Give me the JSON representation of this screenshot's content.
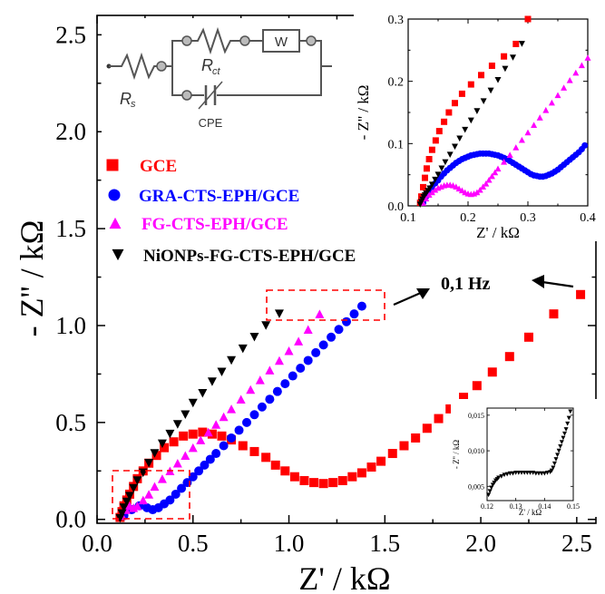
{
  "chart_data": [
    {
      "type": "scatter",
      "xlabel": "Z' / kΩ",
      "ylabel": "- Z'' / kΩ",
      "xlim": [
        0.0,
        2.6
      ],
      "ylim": [
        -0.02,
        2.6
      ],
      "xticks": [
        0.0,
        0.5,
        1.0,
        1.5,
        2.0,
        2.5
      ],
      "xtick_labels": [
        "0.0",
        "0.5",
        "1.0",
        "1.5",
        "2.0",
        "2.5"
      ],
      "yticks": [
        0.0,
        0.5,
        1.0,
        1.5,
        2.0,
        2.5
      ],
      "ytick_labels": [
        "0.0",
        "0.5",
        "1.0",
        "1.5",
        "2.0",
        "2.5"
      ],
      "annotation": "0,1 Hz",
      "legend_position": "left, upper-middle",
      "series": [
        {
          "name": "GCE",
          "color": "#ff0000",
          "marker": "square",
          "x": [
            0.12,
            0.13,
            0.14,
            0.155,
            0.17,
            0.19,
            0.21,
            0.24,
            0.27,
            0.31,
            0.35,
            0.4,
            0.45,
            0.5,
            0.55,
            0.6,
            0.65,
            0.7,
            0.76,
            0.82,
            0.88,
            0.93,
            0.98,
            1.03,
            1.08,
            1.13,
            1.18,
            1.23,
            1.28,
            1.33,
            1.38,
            1.43,
            1.48,
            1.54,
            1.6,
            1.66,
            1.72,
            1.78,
            1.84,
            1.91,
            1.98,
            2.06,
            2.15,
            2.25,
            2.38,
            2.52
          ],
          "y": [
            0.01,
            0.04,
            0.07,
            0.1,
            0.13,
            0.17,
            0.21,
            0.25,
            0.29,
            0.33,
            0.37,
            0.4,
            0.43,
            0.44,
            0.45,
            0.44,
            0.43,
            0.41,
            0.38,
            0.35,
            0.32,
            0.28,
            0.25,
            0.22,
            0.2,
            0.19,
            0.185,
            0.19,
            0.2,
            0.22,
            0.24,
            0.27,
            0.3,
            0.34,
            0.38,
            0.42,
            0.47,
            0.52,
            0.57,
            0.63,
            0.69,
            0.76,
            0.84,
            0.94,
            1.06,
            1.16
          ]
        },
        {
          "name": "GRA-CTS-EPH/GCE",
          "color": "#0000ff",
          "marker": "circle",
          "x": [
            0.14,
            0.18,
            0.22,
            0.26,
            0.29,
            0.32,
            0.35,
            0.38,
            0.41,
            0.44,
            0.47,
            0.5,
            0.53,
            0.56,
            0.59,
            0.62,
            0.66,
            0.7,
            0.74,
            0.78,
            0.82,
            0.86,
            0.9,
            0.94,
            0.98,
            1.02,
            1.06,
            1.1,
            1.14,
            1.18,
            1.22,
            1.26,
            1.3,
            1.34,
            1.38
          ],
          "y": [
            0.02,
            0.05,
            0.07,
            0.06,
            0.05,
            0.06,
            0.08,
            0.1,
            0.13,
            0.16,
            0.19,
            0.22,
            0.25,
            0.28,
            0.31,
            0.34,
            0.38,
            0.42,
            0.46,
            0.5,
            0.54,
            0.58,
            0.62,
            0.66,
            0.7,
            0.74,
            0.78,
            0.82,
            0.86,
            0.9,
            0.94,
            0.98,
            1.02,
            1.06,
            1.1
          ]
        },
        {
          "name": "FG-CTS-EPH/GCE",
          "color": "#ff00ff",
          "marker": "triangle-up",
          "x": [
            0.13,
            0.15,
            0.17,
            0.19,
            0.21,
            0.24,
            0.27,
            0.3,
            0.34,
            0.38,
            0.42,
            0.46,
            0.5,
            0.54,
            0.58,
            0.62,
            0.66,
            0.7,
            0.75,
            0.8,
            0.85,
            0.9,
            0.95,
            1.0,
            1.05,
            1.1,
            1.16
          ],
          "y": [
            0.02,
            0.05,
            0.07,
            0.06,
            0.07,
            0.1,
            0.13,
            0.17,
            0.21,
            0.25,
            0.29,
            0.33,
            0.37,
            0.41,
            0.45,
            0.49,
            0.53,
            0.57,
            0.62,
            0.67,
            0.72,
            0.77,
            0.82,
            0.87,
            0.92,
            0.98,
            1.06
          ]
        },
        {
          "name": "NiONPs-FG-CTS-EPH/GCE",
          "color": "#000000",
          "marker": "triangle-down",
          "x": [
            0.12,
            0.13,
            0.14,
            0.155,
            0.17,
            0.19,
            0.21,
            0.24,
            0.27,
            0.3,
            0.34,
            0.38,
            0.42,
            0.46,
            0.5,
            0.55,
            0.6,
            0.65,
            0.7,
            0.76,
            0.82,
            0.88,
            0.95
          ],
          "y": [
            0.005,
            0.03,
            0.06,
            0.09,
            0.12,
            0.16,
            0.2,
            0.24,
            0.29,
            0.34,
            0.39,
            0.44,
            0.49,
            0.54,
            0.6,
            0.65,
            0.71,
            0.76,
            0.82,
            0.88,
            0.94,
            1.0,
            1.06
          ]
        }
      ]
    },
    {
      "type": "scatter",
      "xlabel": "Z' / kΩ",
      "ylabel": "- Z'' / kΩ",
      "xlim": [
        0.1,
        0.4
      ],
      "ylim": [
        0.0,
        0.3
      ],
      "xticks": [
        0.1,
        0.2,
        0.3,
        0.4
      ],
      "xtick_labels": [
        "0.1",
        "0.2",
        "0.3",
        "0.4"
      ],
      "yticks": [
        0.0,
        0.1,
        0.2,
        0.3
      ],
      "ytick_labels": [
        "0.0",
        "0.1",
        "0.2",
        "0.3"
      ],
      "series": [
        {
          "name": "GCE",
          "color": "#ff0000",
          "marker": "square",
          "x": [
            0.12,
            0.122,
            0.125,
            0.128,
            0.131,
            0.135,
            0.14,
            0.146,
            0.152,
            0.16,
            0.168,
            0.178,
            0.19,
            0.205,
            0.222,
            0.24,
            0.26,
            0.28,
            0.3
          ],
          "y": [
            0.005,
            0.015,
            0.03,
            0.045,
            0.06,
            0.075,
            0.09,
            0.105,
            0.12,
            0.135,
            0.15,
            0.165,
            0.18,
            0.195,
            0.21,
            0.225,
            0.24,
            0.26,
            0.3
          ]
        },
        {
          "name": "GRA-CTS-EPH/GCE",
          "color": "#0000ff",
          "marker": "circle",
          "x": [
            0.125,
            0.13,
            0.135,
            0.14,
            0.145,
            0.15,
            0.155,
            0.16,
            0.165,
            0.17,
            0.175,
            0.18,
            0.185,
            0.19,
            0.195,
            0.2,
            0.205,
            0.21,
            0.215,
            0.22,
            0.225,
            0.23,
            0.235,
            0.24,
            0.245,
            0.25,
            0.255,
            0.26,
            0.265,
            0.27,
            0.275,
            0.28,
            0.285,
            0.29,
            0.295,
            0.3,
            0.305,
            0.31,
            0.315,
            0.32,
            0.325,
            0.33,
            0.335,
            0.34,
            0.345,
            0.35,
            0.355,
            0.36,
            0.365,
            0.37,
            0.375,
            0.38,
            0.385,
            0.39,
            0.395
          ],
          "y": [
            0.005,
            0.015,
            0.023,
            0.03,
            0.036,
            0.041,
            0.047,
            0.052,
            0.057,
            0.061,
            0.065,
            0.069,
            0.072,
            0.075,
            0.077,
            0.079,
            0.081,
            0.082,
            0.083,
            0.084,
            0.084,
            0.084,
            0.084,
            0.083,
            0.082,
            0.081,
            0.079,
            0.077,
            0.075,
            0.072,
            0.069,
            0.066,
            0.063,
            0.06,
            0.057,
            0.054,
            0.051,
            0.049,
            0.048,
            0.047,
            0.047,
            0.048,
            0.05,
            0.052,
            0.055,
            0.058,
            0.062,
            0.066,
            0.07,
            0.074,
            0.078,
            0.082,
            0.086,
            0.091,
            0.097
          ]
        },
        {
          "name": "FG-CTS-EPH/GCE",
          "color": "#ff00ff",
          "marker": "triangle-up",
          "x": [
            0.125,
            0.13,
            0.135,
            0.14,
            0.145,
            0.15,
            0.155,
            0.16,
            0.165,
            0.17,
            0.175,
            0.18,
            0.185,
            0.19,
            0.195,
            0.2,
            0.205,
            0.21,
            0.215,
            0.22,
            0.225,
            0.23,
            0.235,
            0.24,
            0.245,
            0.25,
            0.26,
            0.27,
            0.28,
            0.29,
            0.3,
            0.31,
            0.32,
            0.33,
            0.34,
            0.35,
            0.36,
            0.37,
            0.38,
            0.39,
            0.4
          ],
          "y": [
            0.005,
            0.012,
            0.018,
            0.022,
            0.026,
            0.029,
            0.031,
            0.033,
            0.034,
            0.034,
            0.033,
            0.031,
            0.028,
            0.025,
            0.022,
            0.02,
            0.019,
            0.02,
            0.022,
            0.026,
            0.031,
            0.036,
            0.042,
            0.048,
            0.054,
            0.06,
            0.071,
            0.082,
            0.094,
            0.106,
            0.118,
            0.13,
            0.142,
            0.154,
            0.166,
            0.178,
            0.19,
            0.202,
            0.214,
            0.226,
            0.238
          ]
        },
        {
          "name": "NiONPs-FG-CTS-EPH/GCE",
          "color": "#000000",
          "marker": "triangle-down",
          "x": [
            0.12,
            0.122,
            0.124,
            0.126,
            0.128,
            0.13,
            0.133,
            0.136,
            0.14,
            0.145,
            0.15,
            0.156,
            0.162,
            0.17,
            0.178,
            0.186,
            0.195,
            0.205,
            0.215,
            0.226,
            0.238,
            0.25,
            0.262,
            0.275,
            0.29
          ],
          "y": [
            0.002,
            0.006,
            0.01,
            0.014,
            0.017,
            0.02,
            0.024,
            0.028,
            0.034,
            0.042,
            0.05,
            0.06,
            0.07,
            0.082,
            0.095,
            0.108,
            0.122,
            0.137,
            0.152,
            0.168,
            0.185,
            0.202,
            0.22,
            0.238,
            0.26
          ]
        }
      ]
    },
    {
      "type": "scatter",
      "xlabel": "Z' / kΩ",
      "ylabel": "- Z'' / kΩ",
      "xlim": [
        0.12,
        0.15
      ],
      "ylim": [
        0.003,
        0.016
      ],
      "xticks": [
        0.12,
        0.13,
        0.14,
        0.15
      ],
      "xtick_labels": [
        "0.12",
        "0.13",
        "0.14",
        "0.15"
      ],
      "yticks": [
        0.005,
        0.01,
        0.015
      ],
      "ytick_labels": [
        "0,005",
        "0,010",
        "0,015"
      ],
      "series": [
        {
          "name": "NiONPs-FG-CTS-EPH/GCE",
          "color": "#000000",
          "marker": "triangle-down",
          "x": [
            0.1205,
            0.121,
            0.1215,
            0.122,
            0.1225,
            0.123,
            0.1235,
            0.124,
            0.125,
            0.126,
            0.127,
            0.128,
            0.129,
            0.13,
            0.131,
            0.132,
            0.133,
            0.134,
            0.135,
            0.136,
            0.137,
            0.138,
            0.139,
            0.14,
            0.141,
            0.142,
            0.1425,
            0.143,
            0.1435,
            0.144,
            0.1445,
            0.145,
            0.1455,
            0.146,
            0.1465,
            0.147,
            0.1475,
            0.148,
            0.1485,
            0.149
          ],
          "y": [
            0.0038,
            0.0043,
            0.0048,
            0.0052,
            0.0055,
            0.0058,
            0.006,
            0.0062,
            0.0064,
            0.0066,
            0.0067,
            0.0068,
            0.0068,
            0.0069,
            0.0069,
            0.0069,
            0.0069,
            0.0069,
            0.0069,
            0.0069,
            0.0068,
            0.0068,
            0.0068,
            0.0068,
            0.0069,
            0.007,
            0.0072,
            0.0076,
            0.0082,
            0.0088,
            0.0094,
            0.01,
            0.0106,
            0.0112,
            0.0118,
            0.0124,
            0.013,
            0.0138,
            0.0146,
            0.0155
          ]
        }
      ]
    }
  ],
  "circuit": {
    "rs_label": "R",
    "rs_sub": "s",
    "rct_label": "R",
    "rct_sub": "ct",
    "w_label": "W",
    "cpe_label": "CPE"
  }
}
